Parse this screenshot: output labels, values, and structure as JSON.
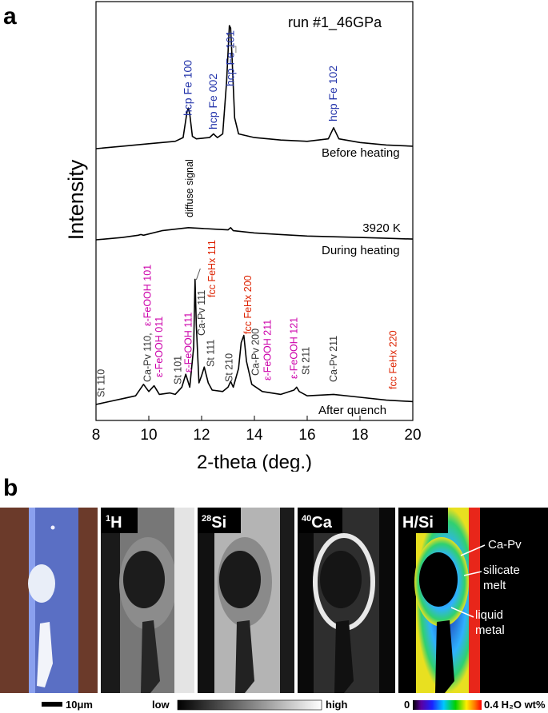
{
  "panel_a": {
    "label": "a",
    "run_label": "run #1_46GPa",
    "ylabel": "Intensity",
    "xlabel": "2-theta (deg.)",
    "x_ticks": [
      "8",
      "10",
      "12",
      "14",
      "16",
      "18",
      "20"
    ]
  },
  "chart_data": {
    "type": "line",
    "xlim": [
      8,
      20
    ],
    "xlabel": "2-theta (deg.)",
    "ylabel": "Intensity",
    "yaxis_units": "arbitrary",
    "series": [
      {
        "name": "Before heating",
        "x": [
          8.0,
          9.0,
          10.0,
          11.0,
          11.3,
          11.45,
          11.5,
          11.55,
          11.65,
          11.8,
          12.3,
          12.45,
          12.5,
          12.6,
          12.8,
          12.95,
          13.05,
          13.1,
          13.15,
          13.25,
          13.4,
          14.0,
          15.0,
          16.0,
          16.8,
          17.0,
          17.2,
          18.0,
          19.0,
          20.0
        ],
        "y": [
          0.0,
          0.02,
          0.04,
          0.06,
          0.09,
          0.3,
          0.33,
          0.28,
          0.1,
          0.08,
          0.09,
          0.12,
          0.11,
          0.09,
          0.12,
          0.55,
          1.0,
          0.98,
          0.75,
          0.25,
          0.12,
          0.09,
          0.07,
          0.06,
          0.08,
          0.17,
          0.08,
          0.05,
          0.03,
          0.02
        ]
      },
      {
        "name": "During heating",
        "x": [
          8.0,
          9.0,
          9.6,
          9.7,
          9.8,
          10.5,
          11.5,
          12.5,
          13.0,
          13.1,
          13.2,
          14.0,
          15.0,
          16.0,
          17.0,
          18.0,
          19.0,
          20.0
        ],
        "y": [
          0.0,
          0.03,
          0.06,
          0.07,
          0.06,
          0.12,
          0.16,
          0.14,
          0.13,
          0.16,
          0.12,
          0.09,
          0.07,
          0.05,
          0.04,
          0.03,
          0.02,
          0.01
        ]
      },
      {
        "name": "After quench",
        "x": [
          8.0,
          8.5,
          9.0,
          9.5,
          9.8,
          10.0,
          10.2,
          10.4,
          10.8,
          11.0,
          11.25,
          11.4,
          11.55,
          11.7,
          11.75,
          11.8,
          11.9,
          12.0,
          12.1,
          12.25,
          12.4,
          12.8,
          13.0,
          13.1,
          13.2,
          13.4,
          13.5,
          13.6,
          13.7,
          13.9,
          14.3,
          15.0,
          15.5,
          15.6,
          15.7,
          16.0,
          17.0,
          18.0,
          19.0,
          20.0
        ],
        "y": [
          0.0,
          0.02,
          0.04,
          0.06,
          0.14,
          0.09,
          0.13,
          0.07,
          0.08,
          0.07,
          0.12,
          0.21,
          0.12,
          0.4,
          0.87,
          0.55,
          0.15,
          0.2,
          0.26,
          0.15,
          0.1,
          0.09,
          0.12,
          0.16,
          0.12,
          0.25,
          0.43,
          0.48,
          0.3,
          0.14,
          0.09,
          0.07,
          0.1,
          0.12,
          0.09,
          0.06,
          0.07,
          0.05,
          0.03,
          0.02
        ]
      }
    ],
    "annotations": [
      {
        "text": "hcp Fe 100",
        "x": 11.5,
        "color": "#2233aa"
      },
      {
        "text": "hcp Fe 002",
        "x": 12.45,
        "color": "#2233aa"
      },
      {
        "text": "hcp Fe 101",
        "x": 13.1,
        "color": "#2233aa"
      },
      {
        "text": "hcp Fe 102",
        "x": 17.0,
        "color": "#2233aa"
      },
      {
        "text": "diffuse signal",
        "x": 11.55,
        "color": "#000000"
      },
      {
        "text": "3920 K",
        "x": 18.1,
        "color": "#000000"
      },
      {
        "text": "St 110",
        "x": 8.2,
        "color": "#333333"
      },
      {
        "text": "Ca-Pv 110,",
        "x": 9.9,
        "color": "#333333"
      },
      {
        "text": "ε-FeOOH 101",
        "x": 9.9,
        "color": "#cc00aa"
      },
      {
        "text": "ε-FeOOH 011",
        "x": 10.4,
        "color": "#cc00aa"
      },
      {
        "text": "St 101",
        "x": 11.1,
        "color": "#333333"
      },
      {
        "text": "ε-FeOOH 111",
        "x": 11.5,
        "color": "#cc00aa"
      },
      {
        "text": "Ca-Pv 111",
        "x": 12.0,
        "color": "#333333"
      },
      {
        "text": "fcc FeHx 111",
        "x": 12.4,
        "color": "#dd2200"
      },
      {
        "text": "St 111",
        "x": 12.35,
        "color": "#333333"
      },
      {
        "text": "St 210",
        "x": 13.05,
        "color": "#333333"
      },
      {
        "text": "fcc FeHx 200",
        "x": 13.75,
        "color": "#dd2200"
      },
      {
        "text": "Ca-Pv 200",
        "x": 14.05,
        "color": "#333333"
      },
      {
        "text": "ε-FeOOH 211",
        "x": 14.5,
        "color": "#cc00aa"
      },
      {
        "text": "ε-FeOOH 121",
        "x": 15.5,
        "color": "#cc00aa"
      },
      {
        "text": "St 211",
        "x": 15.95,
        "color": "#333333"
      },
      {
        "text": "Ca-Pv 211",
        "x": 17.0,
        "color": "#333333"
      },
      {
        "text": "fcc FeHx 220",
        "x": 19.25,
        "color": "#dd2200"
      }
    ]
  },
  "panel_b": {
    "label": "b",
    "images": [
      {
        "label": "",
        "kind": "optical"
      },
      {
        "label": "1H",
        "kind": "gray-1H"
      },
      {
        "label": "28Si",
        "kind": "gray-28Si"
      },
      {
        "label": "40Ca",
        "kind": "gray-40Ca"
      },
      {
        "label": "H/Si",
        "kind": "color-HSi"
      }
    ],
    "isotope_labels": {
      "h_mass": "1",
      "h_el": "H",
      "si_mass": "28",
      "si_el": "Si",
      "ca_mass": "40",
      "ca_el": "Ca",
      "hsi": "H/Si"
    },
    "callouts": [
      "Ca-Pv",
      "silicate melt",
      "liquid metal"
    ],
    "callout_lines": {
      "ca_pv": "Ca-Pv",
      "melt_1": "silicate",
      "melt_2": "melt",
      "metal_1": "liquid",
      "metal_2": "metal"
    },
    "scale_bar": "10μm",
    "gray_scale": {
      "low": "low",
      "high": "high"
    },
    "color_scale": {
      "min": "0",
      "max": "0.4 H₂O wt%"
    },
    "colors": {
      "optical_bg": "#6b3a2a",
      "optical_band": "#5a6fc4",
      "hsi_bg": "#e8261a",
      "hsi_core": "#1a1aa0"
    }
  }
}
